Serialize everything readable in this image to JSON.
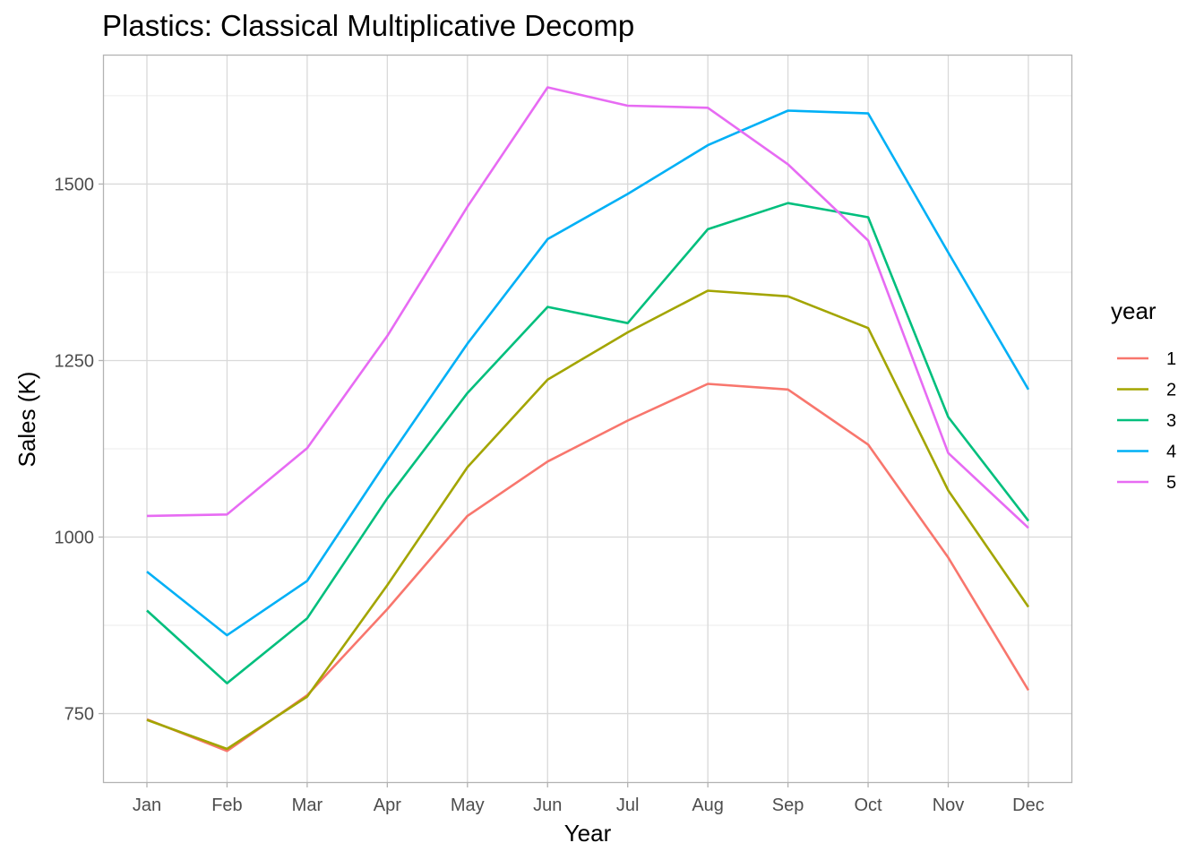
{
  "chart_data": {
    "type": "line",
    "title": "Plastics: Classical Multiplicative Decomp",
    "xlabel": "Year",
    "ylabel": "Sales (K)",
    "categories": [
      "Jan",
      "Feb",
      "Mar",
      "Apr",
      "May",
      "Jun",
      "Jul",
      "Aug",
      "Sep",
      "Oct",
      "Nov",
      "Dec"
    ],
    "yticks": [
      750,
      1000,
      1250,
      1500
    ],
    "ylim": [
      653,
      1682
    ],
    "grid": true,
    "legend": {
      "title": "year",
      "position": "right"
    },
    "series": [
      {
        "name": "1",
        "color": "#F8766D",
        "values": [
          742,
          697,
          776,
          898,
          1030,
          1107,
          1165,
          1217,
          1209,
          1131,
          971,
          783
        ]
      },
      {
        "name": "2",
        "color": "#A3A500",
        "values": [
          741,
          700,
          774,
          932,
          1099,
          1223,
          1290,
          1349,
          1341,
          1296,
          1066,
          901
        ]
      },
      {
        "name": "3",
        "color": "#00BF7D",
        "values": [
          896,
          793,
          885,
          1055,
          1204,
          1326,
          1303,
          1436,
          1473,
          1453,
          1170,
          1023
        ]
      },
      {
        "name": "4",
        "color": "#00B0F6",
        "values": [
          951,
          861,
          938,
          1109,
          1274,
          1422,
          1486,
          1555,
          1604,
          1600,
          1403,
          1209
        ]
      },
      {
        "name": "5",
        "color": "#E76BF3",
        "values": [
          1030,
          1032,
          1126,
          1285,
          1468,
          1637,
          1611,
          1608,
          1528,
          1420,
          1119,
          1013
        ]
      }
    ]
  }
}
